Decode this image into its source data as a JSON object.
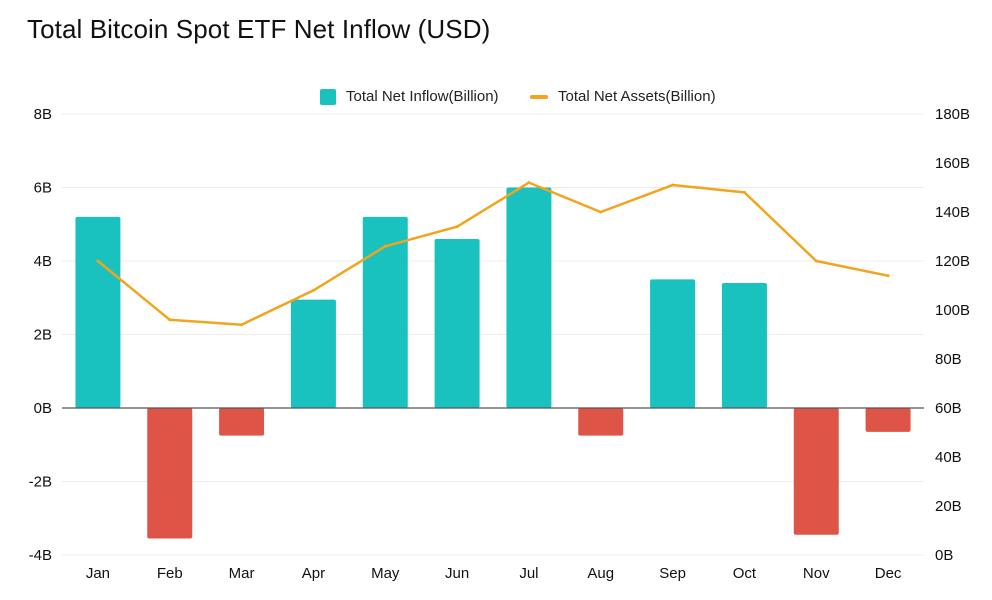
{
  "title": "Total Bitcoin Spot ETF Net Inflow (USD)",
  "legend": {
    "bar_label": "Total Net Inflow(Billion)",
    "line_label": "Total Net Assets(Billion)",
    "placement": "top-center"
  },
  "colors": {
    "positive_bar": "#19c2bf",
    "negative_bar": "#de5548",
    "line": "#f3a31c",
    "grid": "#ececec",
    "zero_line": "#555555",
    "text": "#111111"
  },
  "chart_data": {
    "type": "bar",
    "title": "Total Bitcoin Spot ETF Net Inflow (USD)",
    "categories": [
      "Jan",
      "Feb",
      "Mar",
      "Apr",
      "May",
      "Jun",
      "Jul",
      "Aug",
      "Sep",
      "Oct",
      "Nov",
      "Dec"
    ],
    "series": [
      {
        "name": "Total Net Inflow(Billion)",
        "type": "bar",
        "axis": "left",
        "values": [
          5.2,
          -3.55,
          -0.75,
          2.95,
          5.2,
          4.6,
          6.0,
          -0.75,
          3.5,
          3.4,
          -3.45,
          -0.65
        ]
      },
      {
        "name": "Total Net Assets(Billion)",
        "type": "line",
        "axis": "right",
        "values": [
          120,
          96,
          94,
          108,
          126,
          134,
          152,
          140,
          151,
          148,
          120,
          114
        ]
      }
    ],
    "y_left": {
      "ylim": [
        -4,
        8
      ],
      "ticks": [
        -4,
        -2,
        0,
        2,
        4,
        6,
        8
      ],
      "tick_labels": [
        "-4B",
        "-2B",
        "0B",
        "2B",
        "4B",
        "6B",
        "8B"
      ]
    },
    "y_right": {
      "ylim": [
        0,
        180
      ],
      "ticks": [
        0,
        20,
        40,
        60,
        80,
        100,
        120,
        140,
        160,
        180
      ],
      "tick_labels": [
        "0B",
        "20B",
        "40B",
        "60B",
        "80B",
        "100B",
        "120B",
        "140B",
        "160B",
        "180B"
      ]
    },
    "grid": true,
    "xlabel": "",
    "ylabel": ""
  }
}
